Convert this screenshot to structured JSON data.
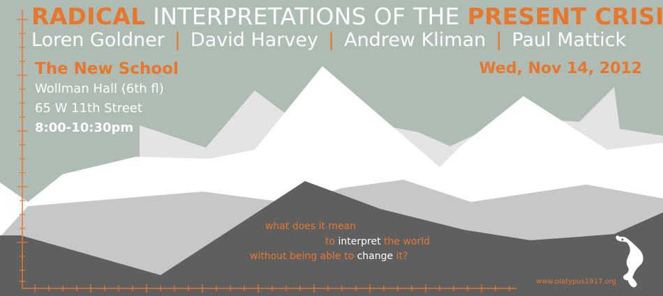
{
  "title": {
    "radical": "RADICAL",
    "middle": " INTERPRETATIONS OF THE ",
    "present_crisis": "PRESENT CRISIS"
  },
  "speakers": [
    "Loren Goldner",
    "David Harvey",
    "Andrew Kliman",
    "Paul Mattick"
  ],
  "speaker_separator": "|",
  "venue": {
    "name": "The New School",
    "hall": "Wollman Hall (6th fl)",
    "address": "65 W 11th Street",
    "time": "8:00-10:30pm"
  },
  "date": "Wed, Nov 14, 2012",
  "question": {
    "line1": "what does it mean",
    "line2_a": "to ",
    "line2_b": "interpret",
    "line2_c": " the world",
    "line3_a": "without being able to ",
    "line3_b": "change",
    "line3_c": " it?"
  },
  "url": "www.platypus1917.org",
  "colors": {
    "sky": "#aebcb3",
    "accent": "#e8772e",
    "mountain_white": "#ffffff",
    "mountain_light": "#e4e4e4",
    "mountain_mid": "#c6c7c9",
    "mountain_dark": "#5f5f60"
  },
  "icons": {
    "logo": "platypus-logo-icon"
  }
}
